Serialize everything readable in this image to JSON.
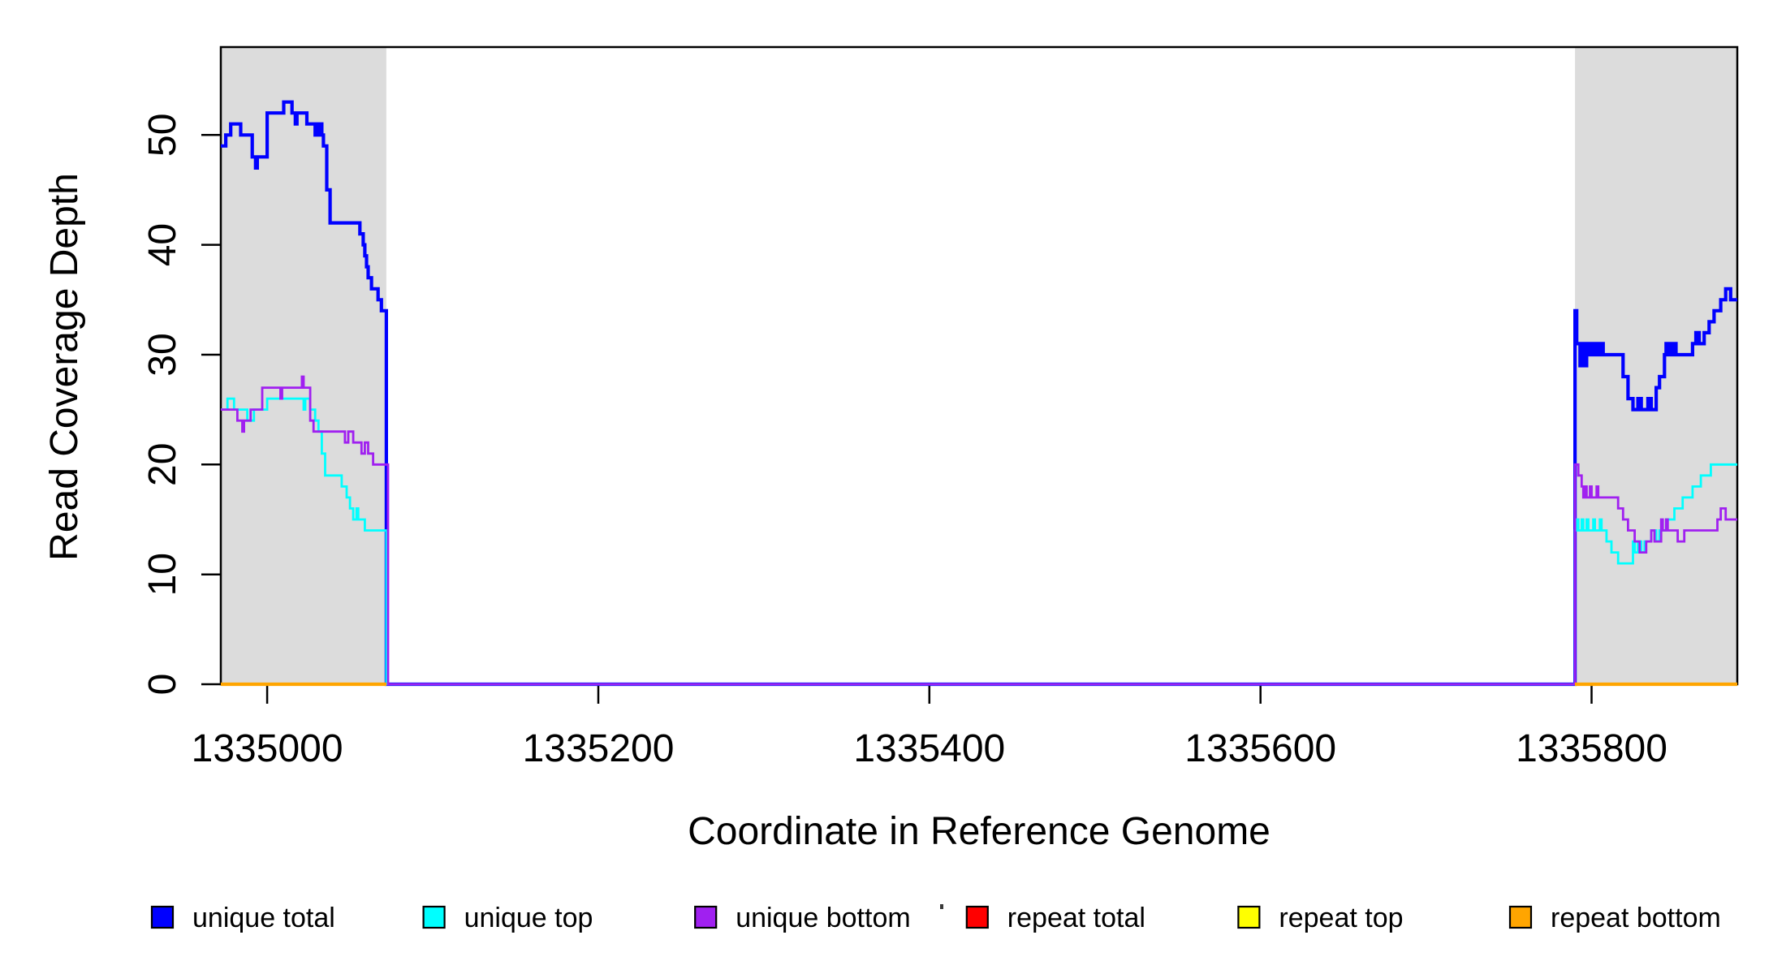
{
  "chart_data": {
    "type": "line",
    "subtype": "step-coverage",
    "title": "",
    "xlabel": "Coordinate in Reference Genome",
    "ylabel": "Read Coverage Depth",
    "xlim": [
      1334972,
      1335888
    ],
    "ylim": [
      0,
      58
    ],
    "x_ticks": [
      1335000,
      1335200,
      1335400,
      1335600,
      1335800
    ],
    "y_ticks": [
      0,
      10,
      20,
      30,
      40,
      50
    ],
    "grid": false,
    "legend_position": "bottom",
    "axis_color": "#000000",
    "highlight_regions": [
      {
        "name": "repeat-region-left",
        "start": 1334972,
        "end": 1335072,
        "color": "#DCDCDC"
      },
      {
        "name": "repeat-region-right",
        "start": 1335790,
        "end": 1335888,
        "color": "#DCDCDC"
      }
    ],
    "series": [
      {
        "name": "unique total",
        "color": "#0000FF",
        "width": 4.2,
        "segments": [
          [
            [
              1334972,
              49
            ],
            [
              1334975,
              50
            ],
            [
              1334978,
              51
            ],
            [
              1334984,
              50
            ],
            [
              1334991,
              48
            ],
            [
              1334993,
              47
            ],
            [
              1334994,
              48
            ],
            [
              1335000,
              52
            ],
            [
              1335010,
              53
            ],
            [
              1335015,
              52
            ],
            [
              1335017,
              51
            ],
            [
              1335018,
              52
            ],
            [
              1335024,
              51
            ],
            [
              1335029,
              50
            ],
            [
              1335031,
              51
            ],
            [
              1335033,
              50
            ],
            [
              1335034,
              49
            ],
            [
              1335036,
              45
            ],
            [
              1335038,
              42
            ],
            [
              1335056,
              41
            ],
            [
              1335058,
              40
            ],
            [
              1335059,
              39
            ],
            [
              1335060,
              38
            ],
            [
              1335061,
              37
            ],
            [
              1335063,
              36
            ],
            [
              1335067,
              35
            ],
            [
              1335069,
              34
            ],
            [
              1335072,
              0
            ],
            [
              1335790,
              34
            ],
            [
              1335791,
              31
            ],
            [
              1335793,
              29
            ],
            [
              1335794,
              31
            ],
            [
              1335795,
              29
            ],
            [
              1335797,
              31
            ],
            [
              1335798,
              30
            ],
            [
              1335800,
              31
            ],
            [
              1335801,
              30
            ],
            [
              1335803,
              31
            ],
            [
              1335804,
              30
            ],
            [
              1335806,
              31
            ],
            [
              1335807,
              30
            ],
            [
              1335819,
              28
            ],
            [
              1335822,
              26
            ],
            [
              1335825,
              25
            ],
            [
              1335828,
              26
            ],
            [
              1335830,
              25
            ],
            [
              1335834,
              26
            ],
            [
              1335836,
              25
            ],
            [
              1335839,
              27
            ],
            [
              1335841,
              28
            ],
            [
              1335844,
              30
            ],
            [
              1335845,
              31
            ],
            [
              1335847,
              30
            ],
            [
              1335849,
              31
            ],
            [
              1335851,
              30
            ],
            [
              1335861,
              31
            ],
            [
              1335863,
              32
            ],
            [
              1335865,
              31
            ],
            [
              1335868,
              32
            ],
            [
              1335871,
              33
            ],
            [
              1335874,
              34
            ],
            [
              1335878,
              35
            ],
            [
              1335881,
              36
            ],
            [
              1335884,
              35
            ],
            [
              1335888,
              35
            ]
          ]
        ]
      },
      {
        "name": "unique top",
        "color": "#00FFFF",
        "width": 2.8,
        "segments": [
          [
            [
              1334972,
              25
            ],
            [
              1334976,
              26
            ],
            [
              1334980,
              25
            ],
            [
              1334988,
              24
            ],
            [
              1334992,
              25
            ],
            [
              1335000,
              26
            ],
            [
              1335020,
              26
            ],
            [
              1335022,
              25
            ],
            [
              1335023,
              26
            ],
            [
              1335026,
              25
            ],
            [
              1335029,
              24
            ],
            [
              1335031,
              23
            ],
            [
              1335033,
              21
            ],
            [
              1335035,
              19
            ],
            [
              1335045,
              18
            ],
            [
              1335048,
              17
            ],
            [
              1335050,
              16
            ],
            [
              1335052,
              15
            ],
            [
              1335054,
              16
            ],
            [
              1335055,
              15
            ],
            [
              1335059,
              14
            ],
            [
              1335072,
              0
            ],
            [
              1335790,
              14
            ],
            [
              1335791,
              15
            ],
            [
              1335792,
              14
            ],
            [
              1335794,
              15
            ],
            [
              1335795,
              14
            ],
            [
              1335797,
              15
            ],
            [
              1335798,
              14
            ],
            [
              1335801,
              15
            ],
            [
              1335802,
              14
            ],
            [
              1335805,
              15
            ],
            [
              1335806,
              14
            ],
            [
              1335809,
              13
            ],
            [
              1335812,
              12
            ],
            [
              1335816,
              11
            ],
            [
              1335823,
              11
            ],
            [
              1335825,
              13
            ],
            [
              1335826,
              12
            ],
            [
              1335828,
              13
            ],
            [
              1335830,
              12
            ],
            [
              1335832,
              13
            ],
            [
              1335836,
              14
            ],
            [
              1335839,
              13
            ],
            [
              1335841,
              14
            ],
            [
              1335845,
              15
            ],
            [
              1335850,
              16
            ],
            [
              1335855,
              17
            ],
            [
              1335861,
              18
            ],
            [
              1335866,
              19
            ],
            [
              1335872,
              20
            ],
            [
              1335888,
              20
            ]
          ]
        ]
      },
      {
        "name": "unique bottom",
        "color": "#A020F0",
        "width": 2.8,
        "segments": [
          [
            [
              1334972,
              25
            ],
            [
              1334982,
              24
            ],
            [
              1334985,
              23
            ],
            [
              1334986,
              24
            ],
            [
              1334990,
              25
            ],
            [
              1334997,
              27
            ],
            [
              1335008,
              26
            ],
            [
              1335009,
              27
            ],
            [
              1335019,
              27
            ],
            [
              1335021,
              28
            ],
            [
              1335022,
              27
            ],
            [
              1335026,
              24
            ],
            [
              1335028,
              23
            ],
            [
              1335045,
              23
            ],
            [
              1335047,
              22
            ],
            [
              1335049,
              23
            ],
            [
              1335052,
              22
            ],
            [
              1335057,
              21
            ],
            [
              1335059,
              22
            ],
            [
              1335061,
              21
            ],
            [
              1335064,
              20
            ],
            [
              1335073,
              0
            ],
            [
              1335790,
              20
            ],
            [
              1335792,
              19
            ],
            [
              1335794,
              18
            ],
            [
              1335795,
              17
            ],
            [
              1335796,
              18
            ],
            [
              1335797,
              17
            ],
            [
              1335799,
              18
            ],
            [
              1335800,
              17
            ],
            [
              1335803,
              18
            ],
            [
              1335804,
              17
            ],
            [
              1335814,
              17
            ],
            [
              1335816,
              16
            ],
            [
              1335819,
              15
            ],
            [
              1335822,
              14
            ],
            [
              1335826,
              13
            ],
            [
              1335829,
              12
            ],
            [
              1335833,
              13
            ],
            [
              1335836,
              14
            ],
            [
              1335838,
              13
            ],
            [
              1335842,
              15
            ],
            [
              1335843,
              14
            ],
            [
              1335845,
              15
            ],
            [
              1335846,
              14
            ],
            [
              1335849,
              14
            ],
            [
              1335852,
              13
            ],
            [
              1335856,
              14
            ],
            [
              1335869,
              14
            ],
            [
              1335876,
              15
            ],
            [
              1335878,
              16
            ],
            [
              1335881,
              15
            ],
            [
              1335888,
              15
            ]
          ]
        ]
      },
      {
        "name": "repeat total",
        "color": "#FF0000",
        "width": 3.8,
        "segments": [
          [
            [
              1334972,
              0
            ],
            [
              1335072,
              0
            ]
          ],
          [
            [
              1335790,
              0
            ],
            [
              1335888,
              0
            ]
          ]
        ]
      },
      {
        "name": "repeat top",
        "color": "#FFFF00",
        "width": 3.8,
        "segments": [
          [
            [
              1334972,
              0
            ],
            [
              1335072,
              0
            ]
          ],
          [
            [
              1335790,
              0
            ],
            [
              1335888,
              0
            ]
          ]
        ]
      },
      {
        "name": "repeat bottom",
        "color": "#FFA500",
        "width": 4.2,
        "segments": [
          [
            [
              1334972,
              0
            ],
            [
              1335072,
              0
            ]
          ],
          [
            [
              1335790,
              0
            ],
            [
              1335888,
              0
            ]
          ]
        ]
      }
    ],
    "legend": [
      {
        "label": "unique total",
        "color": "#0000FF"
      },
      {
        "label": "unique top",
        "color": "#00FFFF"
      },
      {
        "label": "unique bottom",
        "color": "#A020F0"
      },
      {
        "label": "repeat total",
        "color": "#FF0000"
      },
      {
        "label": "repeat top",
        "color": "#FFFF00"
      },
      {
        "label": "repeat bottom",
        "color": "#FFA500"
      }
    ]
  }
}
